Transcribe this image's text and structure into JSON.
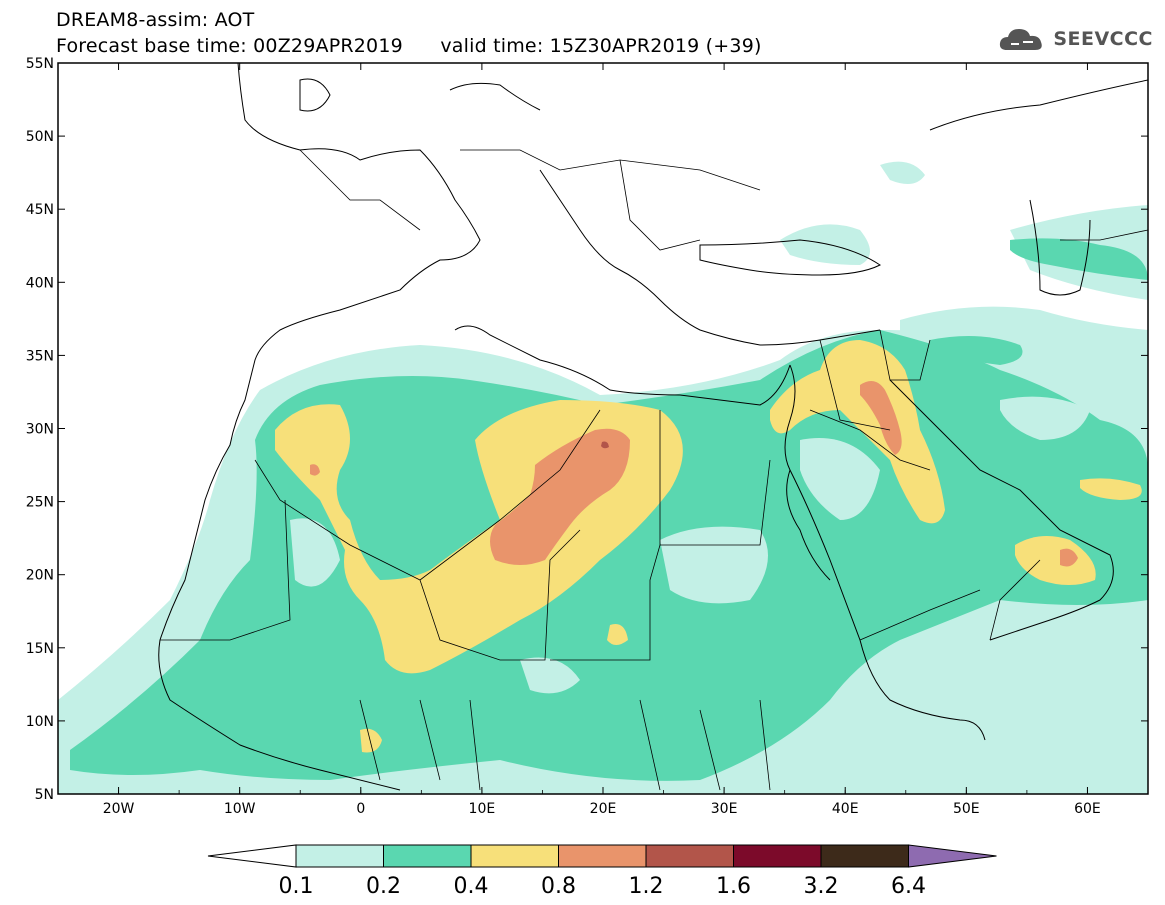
{
  "header": {
    "title_line1": "DREAM8-assim: AOT",
    "title_line2": "Forecast base time: 00Z29APR2019      valid time: 15Z30APR2019 (+39)",
    "logo_text": "SEEVCCC"
  },
  "axes": {
    "lat_labels": [
      "55N",
      "50N",
      "45N",
      "40N",
      "35N",
      "30N",
      "25N",
      "20N",
      "15N",
      "10N",
      "5N"
    ],
    "lon_labels": [
      "20W",
      "10W",
      "0",
      "10E",
      "20E",
      "30E",
      "40E",
      "50E",
      "60E"
    ]
  },
  "colorbar": {
    "labels": [
      "0.1",
      "0.2",
      "0.4",
      "0.8",
      "1.2",
      "1.6",
      "3.2",
      "6.4"
    ],
    "colors": [
      "#ffffff",
      "#c3f0e6",
      "#5ad7b0",
      "#f7e07a",
      "#e9946b",
      "#b2554a",
      "#7c0a2a",
      "#3d2a1a",
      "#8e6bb0"
    ]
  },
  "palette": {
    "c1": "#c3f0e6",
    "c2": "#5ad7b0",
    "c3": "#f7e07a",
    "c4": "#e9946b",
    "c5": "#b2554a"
  }
}
